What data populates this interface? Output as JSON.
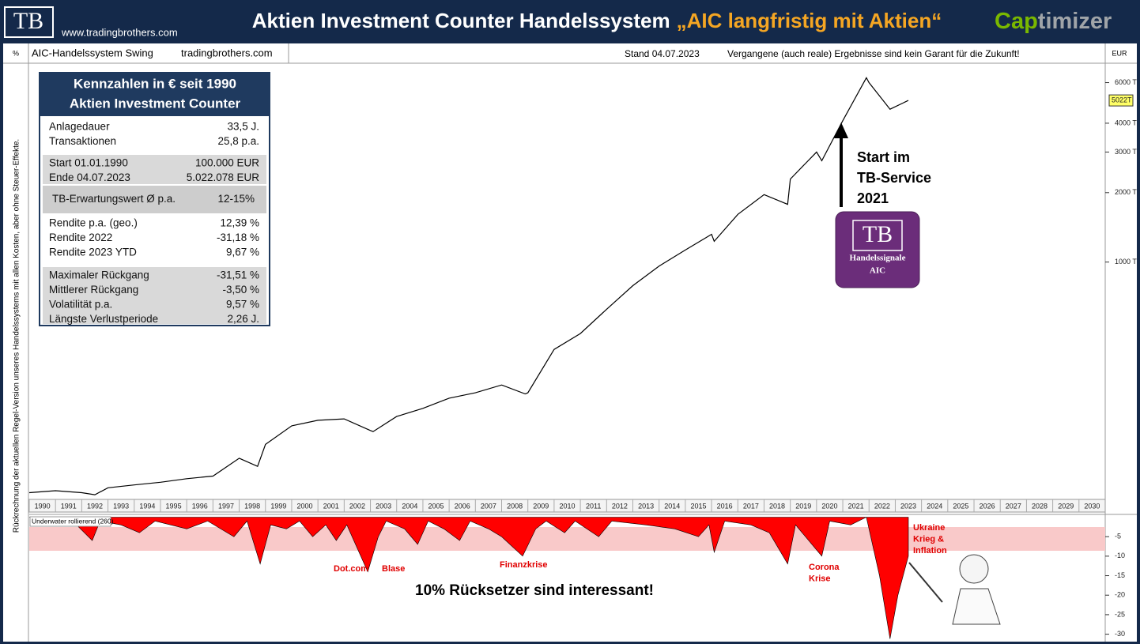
{
  "header": {
    "logo": "TB",
    "website": "www.tradingbrothers.com",
    "title": "Aktien Investment Counter Handelssystem",
    "title_highlight": "„AIC langfristig mit Aktien“",
    "brand_1": "Cap",
    "brand_2": "timizer"
  },
  "toolbar": {
    "unit": "%",
    "system": "AIC-Handelssystem Swing",
    "site": "tradingbrothers.com",
    "date": "Stand 04.07.2023",
    "disclaimer": "Vergangene (auch reale) Ergebnisse sind kein Garant für die Zukunft!",
    "currency": "EUR"
  },
  "side_note": "Rückrechnung der aktuellen Regel-Version unseres Handelssystems mit allen Kosten, aber ohne Steuer-Effekte.",
  "kennzahlen": {
    "title": [
      "Kennzahlen in € seit 1990",
      "Aktien Investment Counter"
    ],
    "groups": [
      [
        [
          "Anlagedauer",
          "33,5 J."
        ],
        [
          "Transaktionen",
          "25,8 p.a."
        ]
      ],
      [
        [
          "Start 01.01.1990",
          "100.000 EUR"
        ],
        [
          "Ende 04.07.2023",
          "5.022.078 EUR"
        ]
      ],
      [
        [
          "TB-Erwartungswert Ø p.a.",
          "12-15%"
        ]
      ],
      [
        [
          "Rendite p.a. (geo.)",
          "12,39 %"
        ],
        [
          "Rendite 2022",
          "-31,18 %"
        ],
        [
          "Rendite 2023 YTD",
          "9,67 %"
        ]
      ],
      [
        [
          "Maximaler Rückgang",
          "-31,51 %"
        ],
        [
          "Mittlerer Rückgang",
          "-3,50 %"
        ],
        [
          "Volatilität p.a.",
          "9,57 %"
        ],
        [
          "Längste Verlustperiode",
          "2,26 J."
        ]
      ]
    ]
  },
  "callout": {
    "text": [
      "Start im",
      "TB-Service",
      "2021"
    ],
    "logo": "TB",
    "logo_lines": [
      "Handelssignale",
      "AIC"
    ]
  },
  "chart_data": [
    {
      "type": "line",
      "color": "#000000",
      "log_y": true,
      "x": [
        1990,
        1991,
        1992,
        1992.5,
        1993,
        1994,
        1995,
        1996,
        1997,
        1998,
        1998.7,
        1999,
        2000,
        2001,
        2002,
        2003,
        2003.1,
        2004,
        2005,
        2006,
        2007,
        2008,
        2008.9,
        2009,
        2010,
        2011,
        2012,
        2013,
        2014,
        2015,
        2016,
        2016.1,
        2017,
        2018,
        2018.9,
        2019,
        2020,
        2020.2,
        2021,
        2021.9,
        2022,
        2022.8,
        2023.5
      ],
      "values": [
        100,
        102,
        100,
        98,
        105,
        108,
        111,
        115,
        118,
        141,
        130,
        162,
        195,
        206,
        209,
        186,
        184,
        214,
        232,
        257,
        271,
        293,
        268,
        271,
        418,
        490,
        624,
        790,
        960,
        1128,
        1320,
        1230,
        1610,
        1960,
        1780,
        2290,
        3000,
        2750,
        4100,
        6300,
        6000,
        4600,
        5022
      ],
      "current_label": "5022T",
      "xlim": [
        1990,
        2031
      ],
      "xticks": [
        1990,
        1991,
        1992,
        1993,
        1994,
        1995,
        1996,
        1997,
        1998,
        1999,
        2000,
        2001,
        2002,
        2003,
        2004,
        2005,
        2006,
        2007,
        2008,
        2009,
        2010,
        2011,
        2012,
        2013,
        2014,
        2015,
        2016,
        2017,
        2018,
        2019,
        2020,
        2021,
        2022,
        2023,
        2024,
        2025,
        2026,
        2027,
        2028,
        2029,
        2030
      ],
      "ylim": [
        95,
        7000
      ],
      "yticks": [
        {
          "value": 1000,
          "label": "1000 T"
        },
        {
          "value": 2000,
          "label": "2000 T"
        },
        {
          "value": 3000,
          "label": "3000 T"
        },
        {
          "value": 4000,
          "label": "4000 T"
        },
        {
          "value": 6000,
          "label": "6000 T"
        }
      ]
    },
    {
      "type": "area",
      "color": "#ff0000",
      "title": "Underwater rollierend (260)",
      "x": [
        1990,
        1991,
        1991.8,
        1992.4,
        1992.7,
        1993.5,
        1994.2,
        1994.8,
        1996,
        1996.8,
        1997.8,
        1998.3,
        1998.8,
        1999.2,
        1999.8,
        2000.3,
        2000.8,
        2001.3,
        2001.7,
        2002.1,
        2002.9,
        2003.3,
        2003.6,
        2004.3,
        2004.8,
        2005.2,
        2005.8,
        2006.4,
        2006.8,
        2007.5,
        2008,
        2008.8,
        2009.3,
        2009.7,
        2010.4,
        2010.8,
        2011.7,
        2012.2,
        2013.5,
        2014.6,
        2015.5,
        2015.9,
        2016.1,
        2016.5,
        2017.5,
        2018.2,
        2018.9,
        2019.2,
        2020.2,
        2020.5,
        2021.3,
        2021.9,
        2022.4,
        2022.8,
        2023.1,
        2023.5
      ],
      "values": [
        0,
        -1,
        -2,
        -6,
        -1,
        -2,
        -4,
        -1,
        -3,
        -1,
        -5,
        -1,
        -12,
        -2,
        -3,
        -1,
        -5,
        -2,
        -6,
        -2,
        -14,
        -5,
        -1,
        -3,
        -7,
        -1,
        -3,
        -6,
        -1,
        -3,
        -5,
        -10,
        -3,
        -1,
        -4,
        -1,
        -5,
        -1,
        -2,
        -3,
        -5,
        -2,
        -9,
        -1,
        -2,
        -4,
        -12,
        -2,
        -10,
        -1,
        -2,
        0,
        -15,
        -31.2,
        -20,
        -10
      ],
      "ylim": [
        -31.5,
        0.5
      ],
      "yticks": [
        -5,
        -10,
        -15,
        -20,
        -25,
        -30
      ],
      "annotations": [
        [
          "Dot.com Blase"
        ],
        [
          "Finanzkrise"
        ],
        [
          "Corona",
          "Krise"
        ],
        [
          "Ukraine",
          "Krieg &",
          "Inflation"
        ],
        [
          "10% Rücksetzer sind interessant!"
        ]
      ]
    }
  ]
}
